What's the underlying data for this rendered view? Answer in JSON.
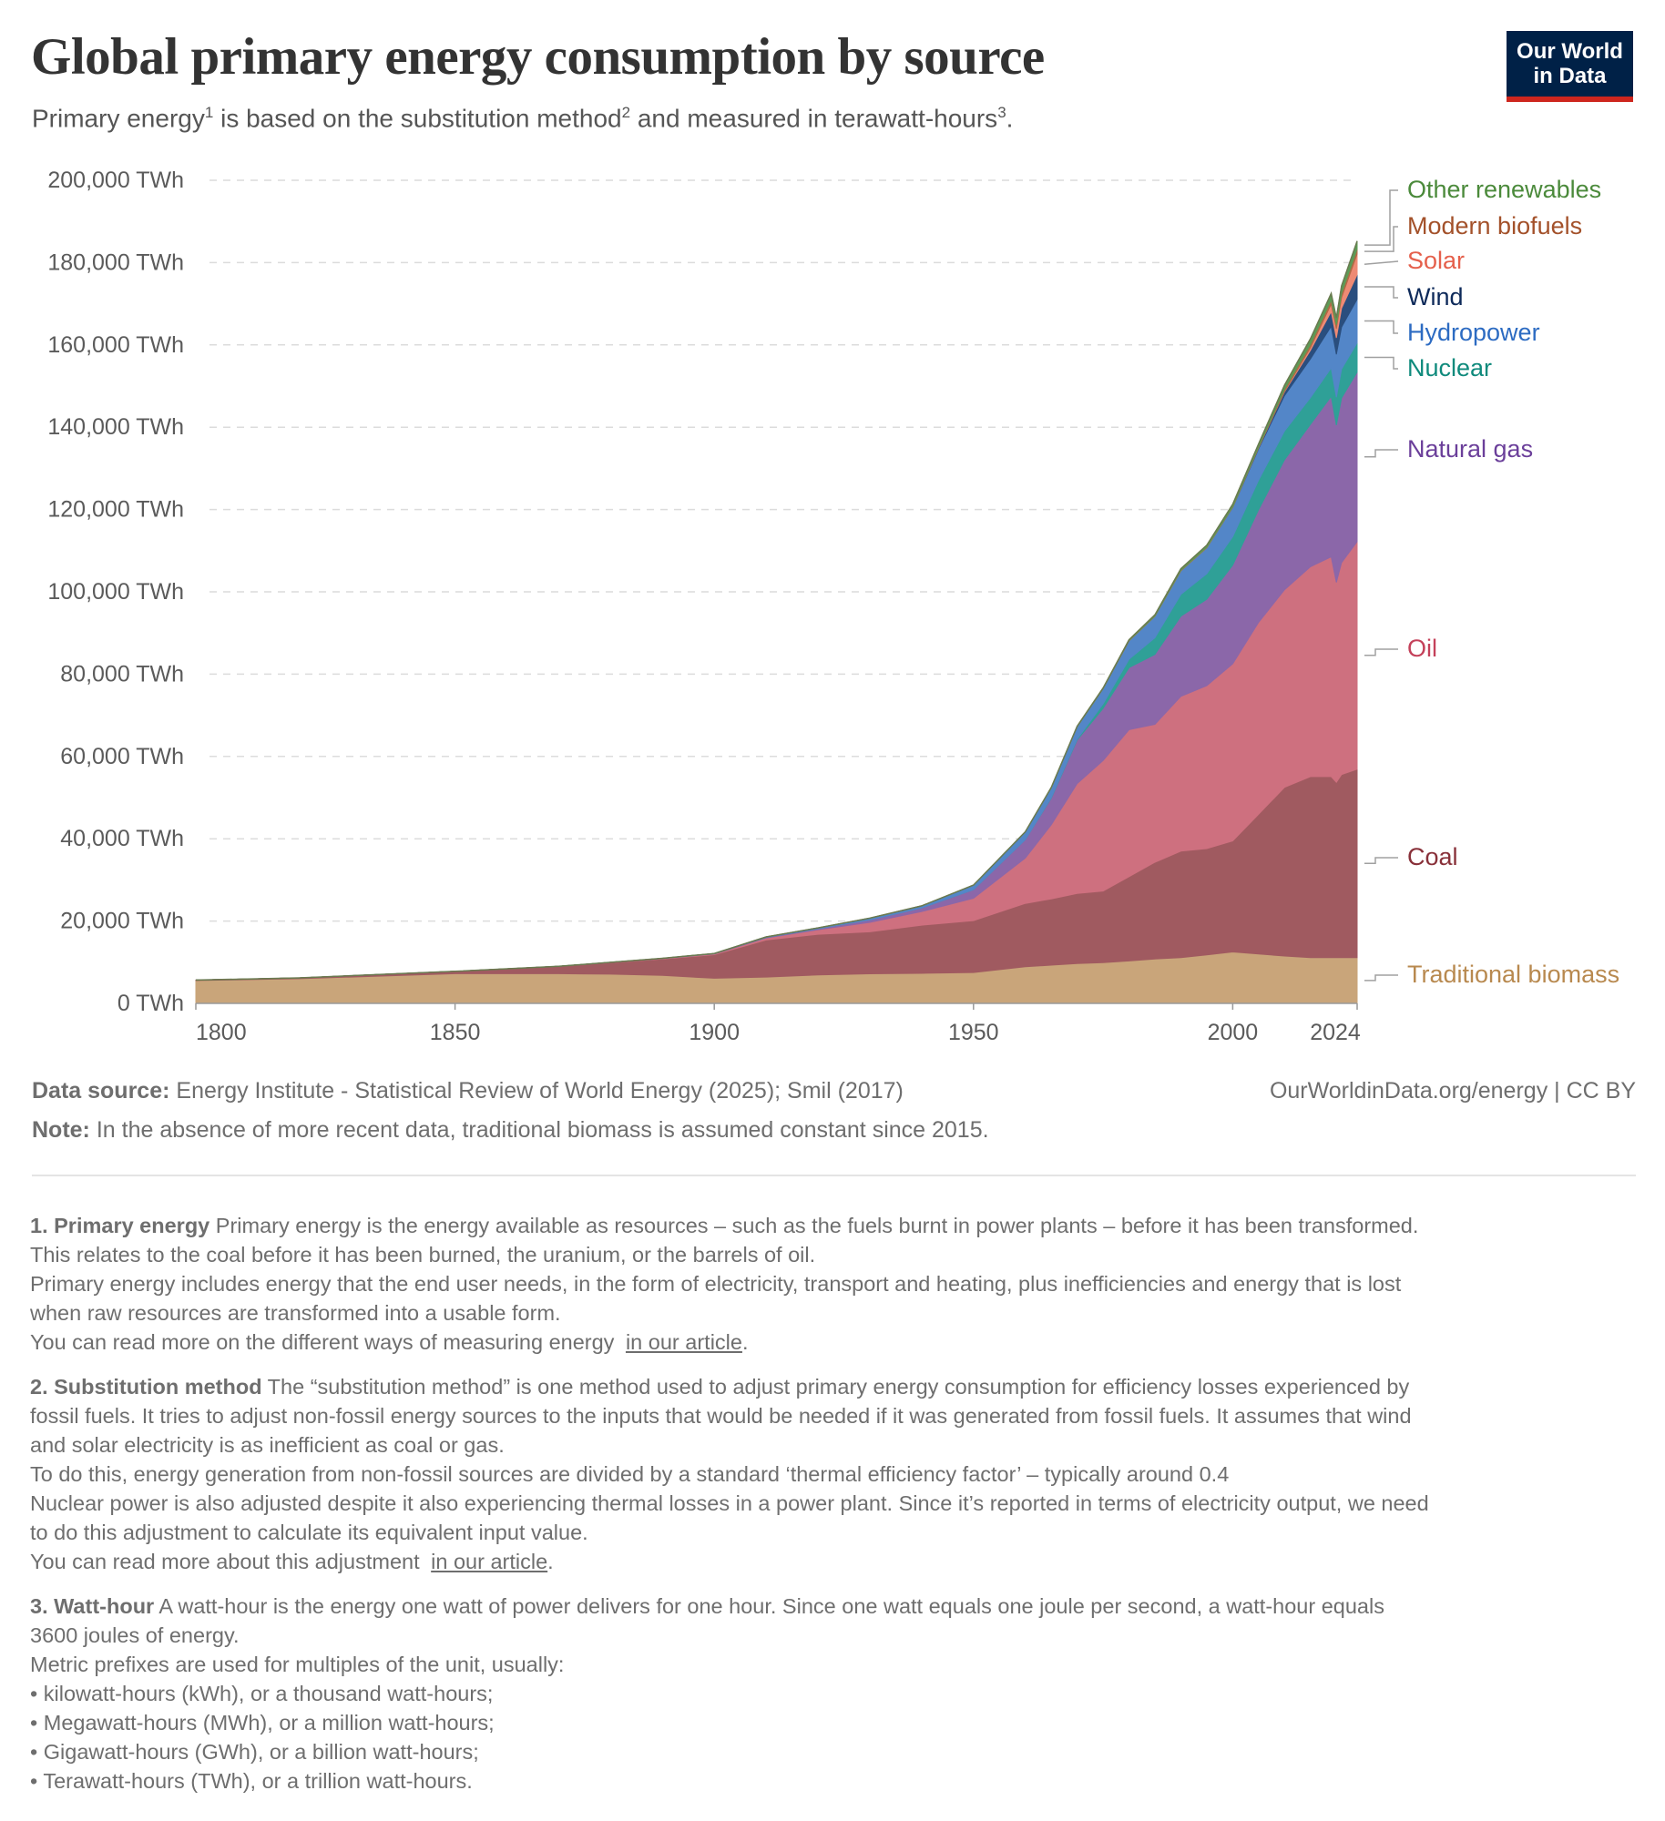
{
  "header": {
    "title": "Global primary energy consumption by source",
    "subtitle_parts": [
      "Primary energy",
      "1",
      " is based on the substitution method",
      "2",
      " and measured in terawatt-hours",
      "3",
      "."
    ],
    "logo": {
      "line1": "Our World",
      "line2": "in Data",
      "bg": "#002147",
      "accent": "#ce261e"
    }
  },
  "chart_data": {
    "type": "area",
    "stacked": true,
    "title": "Global primary energy consumption by source",
    "xlabel": "",
    "ylabel": "",
    "unit": "TWh",
    "xlim": [
      1800,
      2024
    ],
    "ylim": [
      0,
      200000
    ],
    "grid": "horizontal-dashed",
    "legend": "right (inline labels)",
    "yticks": [
      0,
      20000,
      40000,
      60000,
      80000,
      100000,
      120000,
      140000,
      160000,
      180000,
      200000
    ],
    "ytick_labels": [
      "0 TWh",
      "20,000 TWh",
      "40,000 TWh",
      "60,000 TWh",
      "80,000 TWh",
      "100,000 TWh",
      "120,000 TWh",
      "140,000 TWh",
      "160,000 TWh",
      "180,000 TWh",
      "200,000 TWh"
    ],
    "xticks": [
      1800,
      1850,
      1900,
      1950,
      2000,
      2024
    ],
    "xtick_labels": [
      "1800",
      "1850",
      "1900",
      "1950",
      "2000",
      "2024"
    ],
    "x": [
      1800,
      1820,
      1850,
      1870,
      1880,
      1890,
      1900,
      1910,
      1920,
      1930,
      1940,
      1950,
      1960,
      1965,
      1970,
      1975,
      1980,
      1985,
      1990,
      1995,
      2000,
      2005,
      2010,
      2015,
      2019,
      2020,
      2021,
      2024
    ],
    "series": [
      {
        "name": "Traditional biomass",
        "color": "#c9a57a",
        "label_color": "#b8894f",
        "values": [
          5556,
          6000,
          7222,
          7222,
          7100,
          6800,
          6111,
          6400,
          6900,
          7200,
          7300,
          7500,
          8900,
          9300,
          9700,
          9900,
          10300,
          10800,
          11100,
          11800,
          12500,
          12000,
          11500,
          11111,
          11111,
          11111,
          11111,
          11111
        ]
      },
      {
        "name": "Coal",
        "color": "#a05a60",
        "label_color": "#883039",
        "values": [
          97,
          190,
          569,
          1800,
          2800,
          4000,
          5728,
          9000,
          9900,
          10200,
          11700,
          12600,
          15400,
          16100,
          17000,
          17400,
          20500,
          23500,
          25900,
          25800,
          27000,
          34000,
          41000,
          44000,
          44000,
          42600,
          44500,
          45800
        ]
      },
      {
        "name": "Oil",
        "color": "#ce707f",
        "label_color": "#c4415a",
        "values": [
          0,
          0,
          0,
          6,
          50,
          100,
          181,
          500,
          1100,
          2300,
          3300,
          5444,
          11000,
          18000,
          26700,
          31700,
          35700,
          33500,
          37600,
          39600,
          43000,
          46600,
          48000,
          51000,
          53400,
          48600,
          51500,
          55300
        ]
      },
      {
        "name": "Natural gas",
        "color": "#8b67a9",
        "label_color": "#6b3f9a",
        "values": [
          0,
          0,
          0,
          0,
          20,
          40,
          64,
          150,
          233,
          600,
          900,
          2092,
          4500,
          6500,
          10600,
          12700,
          15100,
          17000,
          19500,
          21000,
          24000,
          27400,
          31600,
          34600,
          39000,
          38200,
          40000,
          41200
        ]
      },
      {
        "name": "Nuclear",
        "color": "#2fa097",
        "label_color": "#0f8a7c",
        "values": [
          0,
          0,
          0,
          0,
          0,
          0,
          0,
          0,
          0,
          0,
          0,
          0,
          0,
          100,
          230,
          1080,
          2030,
          4060,
          5300,
          6200,
          6900,
          7200,
          7000,
          6500,
          6900,
          6800,
          7000,
          7100
        ]
      },
      {
        "name": "Hydropower",
        "color": "#5386c8",
        "label_color": "#2c6bc2",
        "values": [
          0,
          0,
          0,
          0,
          0,
          10,
          30,
          100,
          200,
          400,
          500,
          1100,
          1900,
          2400,
          3000,
          3700,
          4500,
          5200,
          5700,
          6300,
          7100,
          7600,
          8600,
          9400,
          10100,
          10400,
          10200,
          10600
        ]
      },
      {
        "name": "Wind",
        "color": "#2a4e7e",
        "label_color": "#0e2a5a",
        "values": [
          0,
          0,
          0,
          0,
          0,
          0,
          0,
          0,
          0,
          0,
          0,
          0,
          0,
          0,
          0,
          0,
          0,
          0,
          10,
          30,
          80,
          270,
          900,
          2100,
          3600,
          4000,
          4600,
          6000
        ]
      },
      {
        "name": "Solar",
        "color": "#ee8a74",
        "label_color": "#e5604c",
        "values": [
          0,
          0,
          0,
          0,
          0,
          0,
          0,
          0,
          0,
          0,
          0,
          0,
          0,
          0,
          0,
          0,
          0,
          0,
          1,
          2,
          3,
          10,
          90,
          640,
          1800,
          2200,
          2600,
          5000
        ]
      },
      {
        "name": "Modern biofuels",
        "color": "#b06a45",
        "label_color": "#a3512a",
        "values": [
          0,
          0,
          0,
          0,
          0,
          0,
          0,
          0,
          0,
          0,
          0,
          0,
          0,
          0,
          0,
          0,
          30,
          60,
          100,
          100,
          110,
          210,
          560,
          780,
          1000,
          950,
          1050,
          1200
        ]
      },
      {
        "name": "Other renewables",
        "color": "#5c9b56",
        "label_color": "#4b8a3b",
        "values": [
          0,
          0,
          0,
          0,
          0,
          0,
          0,
          0,
          0,
          0,
          0,
          0,
          0,
          80,
          110,
          150,
          200,
          300,
          400,
          500,
          600,
          700,
          1000,
          1400,
          1600,
          1700,
          1800,
          1900
        ]
      }
    ]
  },
  "footer": {
    "source_label": "Data source:",
    "source_text": " Energy Institute - Statistical Review of World Energy (2025); Smil (2017)",
    "url": "OurWorldinData.org/energy",
    "license": " | CC BY",
    "note_label": "Note:",
    "note_text": " In the absence of more recent data, traditional biomass is assumed constant since 2015."
  },
  "footnotes": [
    {
      "heading": "1. Primary energy",
      "lines": [
        " Primary energy is the energy available as resources – such as the fuels burnt in power plants – before it has been transformed.",
        "This relates to the coal before it has been burned, the uranium, or the barrels of oil.",
        "Primary energy includes energy that the end user needs, in the form of electricity, transport and heating, plus inefficiencies and energy that is lost",
        "when raw resources are transformed into a usable form.",
        "You can read more on the different ways of measuring energy "
      ],
      "link": "in our article",
      "after_link": "."
    },
    {
      "heading": "2. Substitution method",
      "lines": [
        " The “substitution method” is one method used to adjust primary energy consumption for efficiency losses experienced by",
        "fossil fuels. It tries to adjust non-fossil energy sources to the inputs that would be needed if it was generated from fossil fuels. It assumes that wind",
        "and solar electricity is as inefficient as coal or gas.",
        "To do this, energy generation from non-fossil sources are divided by a standard ‘thermal efficiency factor’ – typically around 0.4",
        "Nuclear power is also adjusted despite it also experiencing thermal losses in a power plant. Since it’s reported in terms of electricity output, we need",
        "to do this adjustment to calculate its equivalent input value.",
        "You can read more about this adjustment "
      ],
      "link": "in our article",
      "after_link": "."
    },
    {
      "heading": "3. Watt-hour",
      "lines": [
        " A watt-hour is the energy one watt of power delivers for one hour. Since one watt equals one joule per second, a watt-hour equals",
        "3600 joules of energy.",
        "Metric prefixes are used for multiples of the unit, usually:",
        "• kilowatt-hours (kWh), or a thousand watt-hours;",
        "• Megawatt-hours (MWh), or a million watt-hours;",
        "• Gigawatt-hours (GWh), or a billion watt-hours;",
        "• Terawatt-hours (TWh), or a trillion watt-hours."
      ],
      "link": "",
      "after_link": ""
    }
  ]
}
